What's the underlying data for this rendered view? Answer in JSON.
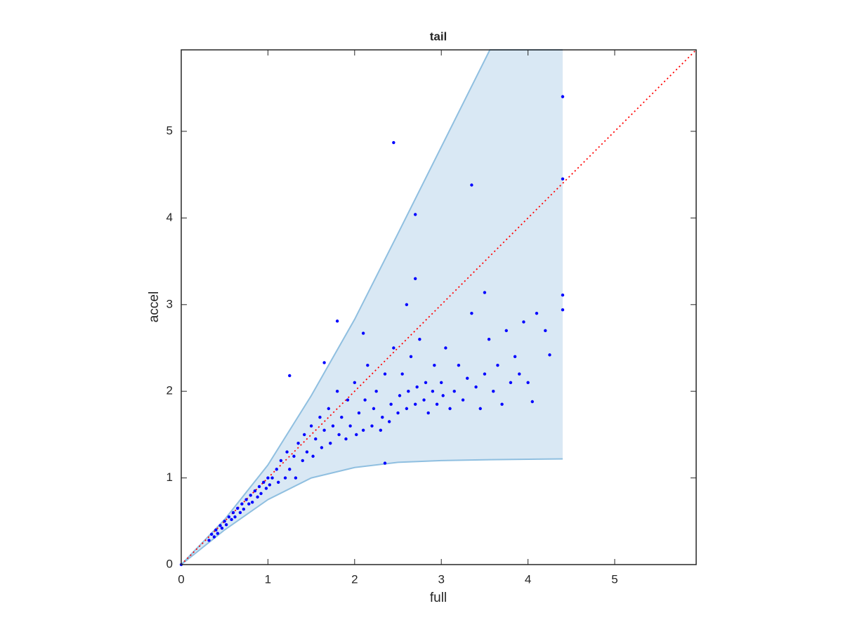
{
  "chart_data": {
    "type": "scatter",
    "title": "tail",
    "xlabel": "full",
    "ylabel": "accel",
    "xlim": [
      0,
      5.94
    ],
    "ylim": [
      0,
      5.94
    ],
    "xticks": [
      0,
      1,
      2,
      3,
      4,
      5
    ],
    "yticks": [
      0,
      1,
      2,
      3,
      4,
      5
    ],
    "color": "#0000ff",
    "x": [
      0.32,
      0.35,
      0.38,
      0.4,
      0.42,
      0.45,
      0.47,
      0.5,
      0.52,
      0.55,
      0.58,
      0.6,
      0.62,
      0.65,
      0.68,
      0.7,
      0.72,
      0.75,
      0.78,
      0.8,
      0.82,
      0.85,
      0.88,
      0.9,
      0.92,
      0.95,
      0.98,
      1.0,
      1.02,
      1.05,
      1.1,
      1.12,
      1.15,
      1.2,
      1.22,
      1.25,
      1.3,
      1.32,
      1.35,
      1.4,
      1.42,
      1.45,
      1.5,
      1.52,
      1.55,
      1.6,
      1.62,
      1.65,
      1.7,
      1.72,
      1.75,
      1.8,
      1.82,
      1.85,
      1.9,
      1.92,
      1.95,
      2.0,
      2.02,
      2.05,
      2.1,
      2.12,
      2.15,
      2.2,
      2.22,
      2.25,
      2.3,
      2.32,
      2.35,
      2.4,
      2.42,
      2.45,
      2.5,
      2.52,
      2.55,
      2.6,
      2.62,
      2.65,
      2.7,
      2.72,
      2.75,
      2.8,
      2.82,
      2.85,
      2.9,
      2.92,
      2.95,
      3.0,
      3.02,
      3.05,
      3.1,
      3.15,
      3.2,
      3.25,
      3.3,
      3.35,
      3.4,
      3.45,
      3.5,
      3.55,
      3.6,
      3.65,
      3.7,
      3.75,
      3.8,
      3.85,
      3.9,
      3.95,
      4.0,
      4.05,
      4.1,
      4.2,
      4.25,
      2.45,
      3.35,
      2.7,
      2.7,
      4.4,
      4.4,
      4.4,
      4.4,
      1.8,
      1.25,
      0,
      2.35,
      3.5,
      2.6,
      1.65,
      2.1
    ],
    "values": [
      0.28,
      0.35,
      0.32,
      0.4,
      0.36,
      0.45,
      0.42,
      0.5,
      0.46,
      0.55,
      0.52,
      0.6,
      0.55,
      0.65,
      0.6,
      0.7,
      0.64,
      0.75,
      0.7,
      0.8,
      0.72,
      0.85,
      0.78,
      0.9,
      0.82,
      0.95,
      0.88,
      1.0,
      0.92,
      1.0,
      1.1,
      0.95,
      1.2,
      1.0,
      1.3,
      1.1,
      1.25,
      1.0,
      1.4,
      1.2,
      1.5,
      1.3,
      1.6,
      1.25,
      1.45,
      1.7,
      1.35,
      1.55,
      1.8,
      1.4,
      1.6,
      2.0,
      1.5,
      1.7,
      1.45,
      1.9,
      1.6,
      2.1,
      1.5,
      1.75,
      1.55,
      1.9,
      2.3,
      1.6,
      1.8,
      2.0,
      1.55,
      1.7,
      2.2,
      1.65,
      1.85,
      2.5,
      1.75,
      1.95,
      2.2,
      1.8,
      2.0,
      2.4,
      1.85,
      2.05,
      2.6,
      1.9,
      2.1,
      1.75,
      2.0,
      2.3,
      1.85,
      2.1,
      1.95,
      2.5,
      1.8,
      2.0,
      2.3,
      1.9,
      2.15,
      2.9,
      2.05,
      1.8,
      2.2,
      2.6,
      2.0,
      2.3,
      1.85,
      2.7,
      2.1,
      2.4,
      2.2,
      2.8,
      2.1,
      1.88,
      2.9,
      2.7,
      2.42,
      4.87,
      4.38,
      4.04,
      3.3,
      5.4,
      4.45,
      3.11,
      2.94,
      2.81,
      2.18,
      0,
      1.17,
      3.14,
      3.0,
      2.33,
      2.67
    ],
    "band": {
      "x": [
        0,
        0.5,
        1,
        1.5,
        2,
        2.5,
        3,
        3.56,
        4.4
      ],
      "upper": [
        0,
        0.52,
        1.15,
        1.95,
        2.83,
        3.82,
        4.82,
        5.94,
        5.94
      ],
      "lower": [
        0,
        0.4,
        0.75,
        1.0,
        1.12,
        1.18,
        1.2,
        1.21,
        1.22
      ],
      "color": "#d9e8f4",
      "edge_color": "#8fbfe0"
    },
    "reference_line": {
      "x": [
        0,
        5.94
      ],
      "values": [
        0,
        5.94
      ],
      "color": "#ff0000"
    }
  }
}
